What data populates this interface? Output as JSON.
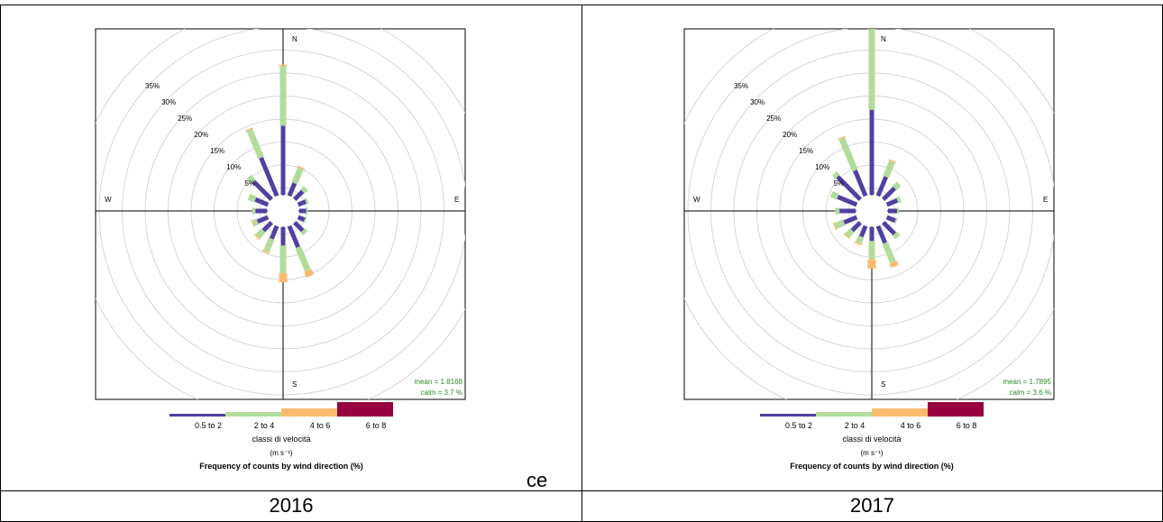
{
  "table": {
    "year_labels": [
      "2016",
      "2017"
    ],
    "stray_text": "ce"
  },
  "chart_data": [
    {
      "type": "windrose",
      "title": "Frequency of counts by wind direction (%)",
      "legend_title": "classi di velocità",
      "legend_unit": "(m s⁻¹)",
      "directions": [
        "N",
        "NNE",
        "NE",
        "ENE",
        "E",
        "ESE",
        "SE",
        "SSE",
        "S",
        "SSW",
        "SW",
        "WSW",
        "W",
        "WNW",
        "NW",
        "NNW"
      ],
      "compass_labels": [
        "N",
        "E",
        "S",
        "W"
      ],
      "radial_ticks": [
        "5%",
        "10%",
        "15%",
        "20%",
        "25%",
        "30%",
        "35%"
      ],
      "series": [
        {
          "name": "0.5 to 2",
          "color": "#5140a0",
          "values": [
            15.0,
            3.0,
            2.5,
            1.8,
            1.5,
            1.5,
            2.5,
            5.0,
            4.0,
            3.0,
            2.5,
            2.5,
            2.5,
            3.0,
            5.5,
            9.0
          ]
        },
        {
          "name": "2 to 4",
          "color": "#b2dc9c",
          "values": [
            13.0,
            3.5,
            1.0,
            0.5,
            0.3,
            0.3,
            0.8,
            5.5,
            6.0,
            3.0,
            1.8,
            1.0,
            0.7,
            1.5,
            1.5,
            6.5
          ]
        },
        {
          "name": "4 to 6",
          "color": "#fbbb6e",
          "values": [
            0.3,
            0.3,
            0.0,
            0.0,
            0.0,
            0.0,
            0.0,
            1.3,
            2.0,
            0.3,
            0.3,
            0.2,
            0.0,
            0.0,
            0.0,
            0.3
          ]
        },
        {
          "name": "6 to 8",
          "color": "#98003f",
          "values": [
            0,
            0,
            0,
            0,
            0,
            0,
            0,
            0,
            0,
            0,
            0,
            0,
            0,
            0,
            0,
            0
          ]
        }
      ],
      "stats": {
        "mean": "mean = 1.8168",
        "calm": "calm = 3.7 %"
      },
      "year": "2016"
    },
    {
      "type": "windrose",
      "title": "Frequency of counts by wind direction (%)",
      "legend_title": "classi di velocità",
      "legend_unit": "(m s⁻¹)",
      "directions": [
        "N",
        "NNE",
        "NE",
        "ENE",
        "E",
        "ESE",
        "SE",
        "SSE",
        "S",
        "SSW",
        "SW",
        "WSW",
        "W",
        "WNW",
        "NW",
        "NNW"
      ],
      "compass_labels": [
        "N",
        "E",
        "S",
        "W"
      ],
      "radial_ticks": [
        "5%",
        "10%",
        "15%",
        "20%",
        "25%",
        "30%",
        "35%"
      ],
      "series": [
        {
          "name": "0.5 to 2",
          "color": "#5140a0",
          "values": [
            18.5,
            4.5,
            3.5,
            2.5,
            2.0,
            2.0,
            3.5,
            4.0,
            3.0,
            2.5,
            2.5,
            3.0,
            3.5,
            4.5,
            7.0,
            6.0
          ]
        },
        {
          "name": "2 to 4",
          "color": "#b2dc9c",
          "values": [
            17.5,
            3.5,
            1.3,
            0.7,
            0.3,
            0.3,
            1.0,
            4.5,
            4.0,
            1.5,
            1.5,
            2.0,
            1.0,
            1.5,
            1.0,
            7.5
          ]
        },
        {
          "name": "4 to 6",
          "color": "#fbbb6e",
          "values": [
            0.3,
            0.3,
            0.0,
            0.0,
            0.0,
            0.0,
            0.0,
            1.0,
            2.0,
            0.3,
            0.3,
            0.3,
            0.0,
            0.0,
            0.0,
            0.3
          ]
        },
        {
          "name": "6 to 8",
          "color": "#98003f",
          "values": [
            0,
            0,
            0,
            0,
            0,
            0,
            0,
            0,
            0,
            0,
            0,
            0,
            0,
            0,
            0,
            0
          ]
        }
      ],
      "stats": {
        "mean": "mean = 1.7895",
        "calm": "calm = 3.6 %"
      },
      "year": "2017"
    }
  ]
}
